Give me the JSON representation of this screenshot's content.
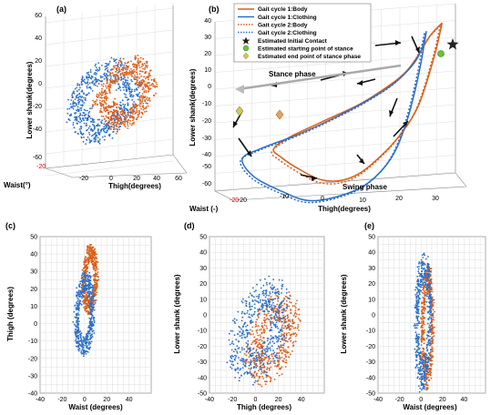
{
  "colors": {
    "body": "#d95f1a",
    "clothing": "#2a6fc9",
    "grid": "#dddddd",
    "arrow": "#111111",
    "guide": "#b0b0b0",
    "start": "#6dbf3e",
    "end": "#d1c85a",
    "contact": "#333333"
  },
  "chart_data": [
    {
      "panel": "(a)",
      "type": "scatter",
      "projection": "3d",
      "xlabel": "Thigh(degrees)",
      "ylabel": "Lower shank(degrees)",
      "zlabel": "Waist(°)",
      "x_ticks": [
        "-20",
        "0",
        "20",
        "40",
        "60"
      ],
      "y_ticks": [
        "-60",
        "-40",
        "-20",
        "0",
        "20",
        "40",
        "60"
      ],
      "z_ticks": [
        "-20"
      ],
      "series": [
        {
          "name": "Body",
          "color": "#d95f1a",
          "shape": "loop",
          "x_range": [
            -5,
            40
          ],
          "y_range": [
            -30,
            45
          ]
        },
        {
          "name": "Clothing",
          "color": "#2a6fc9",
          "shape": "loop",
          "x_range": [
            -20,
            35
          ],
          "y_range": [
            -35,
            40
          ]
        }
      ]
    },
    {
      "panel": "(b)",
      "type": "line",
      "projection": "3d",
      "xlabel": "Thigh(degrees)",
      "ylabel": "Lower shank(degrees)",
      "zlabel": "Waist (-)",
      "x_ticks": [
        "-20",
        "-10",
        "0",
        "10",
        "20",
        "30"
      ],
      "y_ticks": [
        "-60",
        "-50",
        "-40",
        "-30",
        "-20",
        "-10",
        "0",
        "10",
        "20",
        "30",
        "40"
      ],
      "z_ticks": [
        "-20"
      ],
      "legend": {
        "position": "top-left",
        "entries": [
          {
            "label": "Gait cycle 1:Body",
            "color": "#d95f1a",
            "style": "solid"
          },
          {
            "label": "Gait cycle 1:Clothing",
            "color": "#2a6fc9",
            "style": "solid"
          },
          {
            "label": "Gait cycle 2:Body",
            "color": "#d95f1a",
            "style": "dotted"
          },
          {
            "label": "Gait cycle 2:Clothing",
            "color": "#2a6fc9",
            "style": "dotted"
          },
          {
            "label": "Estimated Initial Contact",
            "marker": "star",
            "color": "#333333"
          },
          {
            "label": "Estimated starting point of stance",
            "marker": "circle",
            "color": "#6dbf3e"
          },
          {
            "label": "Estimated end point of stance phase",
            "marker": "diamond",
            "color": "#d1c85a"
          }
        ]
      },
      "annotations": [
        "Stance phase",
        "Swing phase"
      ],
      "series": [
        {
          "name": "Gait cycle 1:Body",
          "x": [
            31,
            28,
            25,
            22,
            18,
            10,
            0,
            -8,
            -12,
            -10,
            -5,
            0,
            5,
            10,
            15,
            20,
            25,
            29,
            31
          ],
          "y": [
            34,
            28,
            18,
            10,
            4,
            -4,
            -10,
            -15,
            -20,
            -26,
            -36,
            -44,
            -47,
            -45,
            -38,
            -28,
            -12,
            15,
            34
          ]
        },
        {
          "name": "Gait cycle 1:Clothing",
          "x": [
            27,
            26,
            24,
            20,
            15,
            5,
            -5,
            -15,
            -20,
            -17,
            -10,
            -3,
            5,
            12,
            18,
            22,
            25,
            27
          ],
          "y": [
            31,
            22,
            14,
            6,
            0,
            -8,
            -14,
            -18,
            -22,
            -34,
            -46,
            -55,
            -56,
            -52,
            -40,
            -20,
            6,
            31
          ]
        }
      ]
    },
    {
      "panel": "(c)",
      "type": "scatter",
      "xlabel": "Waist (degrees)",
      "ylabel": "Thigh (degrees)",
      "xlim": [
        -40,
        60
      ],
      "ylim": [
        -40,
        50
      ],
      "x_ticks": [
        "-40",
        "-20",
        "0",
        "20",
        "40"
      ],
      "y_ticks": [
        "-40",
        "-30",
        "-20",
        "-10",
        "0",
        "10",
        "20",
        "30",
        "40",
        "50"
      ],
      "series": [
        {
          "name": "Body",
          "color": "#d95f1a",
          "cx": 5,
          "cy": 25,
          "rx": 7,
          "ry": 20
        },
        {
          "name": "Clothing",
          "color": "#2a6fc9",
          "cx": 0,
          "cy": 5,
          "rx": 9,
          "ry": 24
        }
      ]
    },
    {
      "panel": "(d)",
      "type": "scatter",
      "xlabel": "Thigh (degrees)",
      "ylabel": "Lower shank (degrees)",
      "xlim": [
        -40,
        60
      ],
      "ylim": [
        -50,
        50
      ],
      "x_ticks": [
        "-40",
        "-20",
        "0",
        "20",
        "40"
      ],
      "y_ticks": [
        "-50",
        "-40",
        "-30",
        "-20",
        "-10",
        "0",
        "10",
        "20",
        "30",
        "40",
        "50"
      ],
      "series": [
        {
          "name": "Body",
          "color": "#d95f1a",
          "cx": 15,
          "cy": -15,
          "rx": 24,
          "ry": 28
        },
        {
          "name": "Clothing",
          "color": "#2a6fc9",
          "cx": 3,
          "cy": -10,
          "rx": 28,
          "ry": 32
        }
      ]
    },
    {
      "panel": "(e)",
      "type": "scatter",
      "xlabel": "Waist (degrees)",
      "ylabel": "Lower shank (degrees)",
      "xlim": [
        -40,
        60
      ],
      "ylim": [
        -50,
        50
      ],
      "x_ticks": [
        "-40",
        "-20",
        "0",
        "20",
        "40"
      ],
      "y_ticks": [
        "-50",
        "-40",
        "-30",
        "-20",
        "-10",
        "0",
        "10",
        "20",
        "30",
        "40",
        "50"
      ],
      "series": [
        {
          "name": "Body",
          "color": "#d95f1a",
          "cx": 6,
          "cy": -8,
          "rx": 6,
          "ry": 40
        },
        {
          "name": "Clothing",
          "color": "#2a6fc9",
          "cx": 2,
          "cy": -4,
          "rx": 8,
          "ry": 44
        }
      ]
    }
  ]
}
